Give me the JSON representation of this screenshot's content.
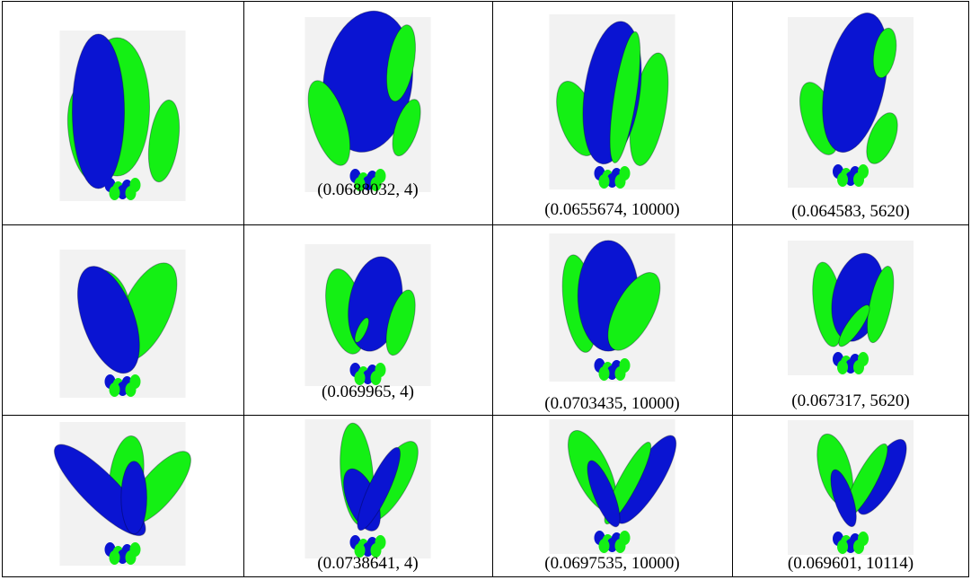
{
  "table": {
    "rows": [
      {
        "cells": [
          {
            "caption": "",
            "lobes": [
              {
                "c": "g",
                "x": -6,
                "y": -10,
                "rx": 36,
                "ry": 77,
                "r": 0
              },
              {
                "c": "g",
                "x": -40,
                "y": 20,
                "rx": 20,
                "ry": 52,
                "r": -8
              },
              {
                "c": "g",
                "x": 46,
                "y": 28,
                "rx": 16,
                "ry": 46,
                "r": 8
              },
              {
                "c": "b",
                "x": -27,
                "y": -5,
                "rx": 29,
                "ry": 86,
                "r": 0
              }
            ]
          },
          {
            "caption": "(0.0688032, 4)",
            "lobes": [
              {
                "c": "b",
                "x": 0,
                "y": -25,
                "rx": 48,
                "ry": 77,
                "r": 8
              },
              {
                "c": "g",
                "x": -42,
                "y": 20,
                "rx": 18,
                "ry": 48,
                "r": -18
              },
              {
                "c": "g",
                "x": 36,
                "y": -45,
                "rx": 14,
                "ry": 42,
                "r": 10
              },
              {
                "c": "g",
                "x": 42,
                "y": 25,
                "rx": 12,
                "ry": 32,
                "r": 18
              }
            ]
          },
          {
            "caption": "(0.0655674, 10000)",
            "lobes": [
              {
                "c": "g",
                "x": -38,
                "y": 18,
                "rx": 19,
                "ry": 42,
                "r": -18
              },
              {
                "c": "g",
                "x": 40,
                "y": 8,
                "rx": 18,
                "ry": 62,
                "r": 10
              },
              {
                "c": "b",
                "x": 0,
                "y": -10,
                "rx": 30,
                "ry": 78,
                "r": 8
              },
              {
                "c": "g",
                "x": 14,
                "y": -5,
                "rx": 12,
                "ry": 72,
                "r": 9
              }
            ]
          },
          {
            "caption": "(0.064583, 5620)",
            "lobes": [
              {
                "c": "g",
                "x": -35,
                "y": 18,
                "rx": 18,
                "ry": 42,
                "r": -18
              },
              {
                "c": "b",
                "x": 5,
                "y": -22,
                "rx": 33,
                "ry": 79,
                "r": 12
              },
              {
                "c": "g",
                "x": 38,
                "y": -55,
                "rx": 12,
                "ry": 28,
                "r": 10
              },
              {
                "c": "g",
                "x": 35,
                "y": 40,
                "rx": 14,
                "ry": 30,
                "r": 22
              }
            ]
          }
        ]
      },
      {
        "cells": [
          {
            "caption": "",
            "lobes": [
              {
                "c": "g",
                "x": 30,
                "y": -15,
                "rx": 30,
                "ry": 68,
                "r": 25
              },
              {
                "c": "g",
                "x": -18,
                "y": -30,
                "rx": 25,
                "ry": 40,
                "r": -20
              },
              {
                "c": "b",
                "x": -18,
                "y": -5,
                "rx": 33,
                "ry": 72,
                "r": -20
              }
            ]
          },
          {
            "caption": "(0.069965, 4)",
            "lobes": [
              {
                "c": "g",
                "x": -30,
                "y": -5,
                "rx": 24,
                "ry": 58,
                "r": -12
              },
              {
                "c": "b",
                "x": 10,
                "y": -15,
                "rx": 35,
                "ry": 64,
                "r": 10
              },
              {
                "c": "g",
                "x": 44,
                "y": 10,
                "rx": 16,
                "ry": 45,
                "r": 15
              },
              {
                "c": "g",
                "x": -8,
                "y": 20,
                "rx": 6,
                "ry": 18,
                "r": 25
              }
            ]
          },
          {
            "caption": "(0.0703435, 10000)",
            "lobes": [
              {
                "c": "g",
                "x": -42,
                "y": -5,
                "rx": 20,
                "ry": 63,
                "r": -8
              },
              {
                "c": "b",
                "x": -5,
                "y": -15,
                "rx": 39,
                "ry": 71,
                "r": 0
              },
              {
                "c": "g",
                "x": 28,
                "y": 5,
                "rx": 24,
                "ry": 55,
                "r": 28
              }
            ]
          },
          {
            "caption": "(0.067317, 5620)",
            "lobes": [
              {
                "c": "g",
                "x": -32,
                "y": -5,
                "rx": 20,
                "ry": 60,
                "r": -8
              },
              {
                "c": "b",
                "x": 10,
                "y": -15,
                "rx": 35,
                "ry": 63,
                "r": 12
              },
              {
                "c": "g",
                "x": 42,
                "y": -5,
                "rx": 15,
                "ry": 55,
                "r": 12
              },
              {
                "c": "g",
                "x": 5,
                "y": 25,
                "rx": 10,
                "ry": 35,
                "r": 35
              }
            ]
          }
        ]
      },
      {
        "cells": [
          {
            "caption": "",
            "lobes": [
              {
                "c": "g",
                "x": 5,
                "y": -22,
                "rx": 22,
                "ry": 55,
                "r": 8
              },
              {
                "c": "g",
                "x": 48,
                "y": -8,
                "rx": 22,
                "ry": 60,
                "r": 40
              },
              {
                "c": "b",
                "x": -30,
                "y": -5,
                "rx": 23,
                "ry": 82,
                "r": -45
              },
              {
                "c": "b",
                "x": 15,
                "y": 5,
                "rx": 17,
                "ry": 48,
                "r": 0
              }
            ]
          },
          {
            "caption": "(0.0738641, 4)",
            "lobes": [
              {
                "c": "g",
                "x": -15,
                "y": -20,
                "rx": 22,
                "ry": 70,
                "r": -5
              },
              {
                "c": "g",
                "x": 32,
                "y": -10,
                "rx": 22,
                "ry": 62,
                "r": 30
              },
              {
                "c": "b",
                "x": -8,
                "y": 15,
                "rx": 20,
                "ry": 45,
                "r": -22
              },
              {
                "c": "b",
                "x": 15,
                "y": 0,
                "rx": 14,
                "ry": 62,
                "r": 25
              }
            ]
          },
          {
            "caption": "(0.0697535, 10000)",
            "lobes": [
              {
                "c": "g",
                "x": -28,
                "y": -22,
                "rx": 24,
                "ry": 62,
                "r": -25
              },
              {
                "c": "b",
                "x": 48,
                "y": -10,
                "rx": 21,
                "ry": 72,
                "r": 32
              },
              {
                "c": "g",
                "x": 22,
                "y": -5,
                "rx": 13,
                "ry": 65,
                "r": 28
              },
              {
                "c": "b",
                "x": -12,
                "y": 10,
                "rx": 14,
                "ry": 50,
                "r": -22
              }
            ]
          },
          {
            "caption": "(0.069601, 10114)",
            "lobes": [
              {
                "c": "g",
                "x": -22,
                "y": -25,
                "rx": 22,
                "ry": 52,
                "r": -15
              },
              {
                "c": "b",
                "x": 44,
                "y": -15,
                "rx": 20,
                "ry": 60,
                "r": 30
              },
              {
                "c": "g",
                "x": 22,
                "y": -10,
                "rx": 14,
                "ry": 58,
                "r": 28
              },
              {
                "c": "b",
                "x": -10,
                "y": 15,
                "rx": 13,
                "ry": 42,
                "r": -18
              }
            ]
          }
        ]
      }
    ],
    "colors": {
      "blue": "#0a14d2",
      "green": "#14f014",
      "image_bg": "#f2f2f2",
      "border": "#000000"
    }
  }
}
